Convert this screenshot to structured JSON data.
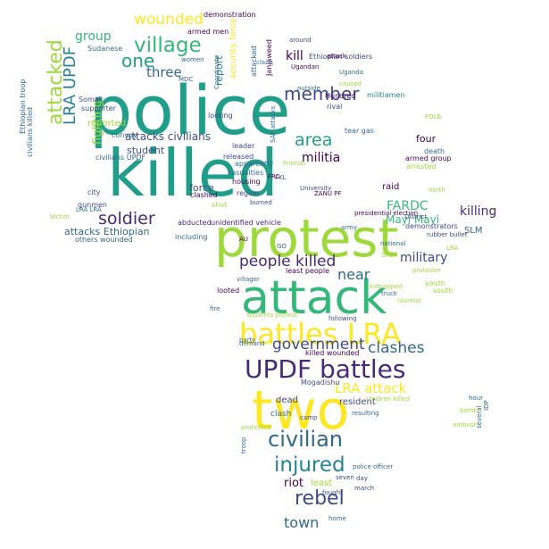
{
  "word_cloud": {
    "colors": {
      "teal": "#1f9e89",
      "green": "#35b779",
      "lime": "#9ed93a",
      "yellow": "#fde725",
      "blue": "#31688e",
      "indigo": "#3e4a89",
      "purple": "#482878",
      "dark": "#440154",
      "mid": "#26828e"
    },
    "words": [
      {
        "text": "police",
        "color": "teal"
      },
      {
        "text": "killed",
        "color": "teal"
      },
      {
        "text": "protest",
        "color": "lime"
      },
      {
        "text": "attack",
        "color": "green"
      },
      {
        "text": "two",
        "color": "yellow"
      },
      {
        "text": "battles LRA",
        "color": "yellow"
      },
      {
        "text": "UPDF battles",
        "color": "purple"
      },
      {
        "text": "civilian",
        "color": "blue"
      },
      {
        "text": "injured",
        "color": "mid"
      },
      {
        "text": "village",
        "color": "green"
      },
      {
        "text": "attacked",
        "color": "lime"
      },
      {
        "text": "LRA UPDF",
        "color": "mid"
      },
      {
        "text": "member",
        "color": "indigo"
      },
      {
        "text": "people killed",
        "color": "purple"
      },
      {
        "text": "area",
        "color": "teal"
      },
      {
        "text": "rebel",
        "color": "indigo"
      },
      {
        "text": "soldier",
        "color": "purple"
      },
      {
        "text": "government",
        "color": "indigo"
      },
      {
        "text": "clashes",
        "color": "blue"
      },
      {
        "text": "wounded",
        "color": "yellow"
      },
      {
        "text": "one",
        "color": "teal"
      },
      {
        "text": "LRA attack",
        "color": "yellow"
      },
      {
        "text": "militia",
        "color": "dark"
      },
      {
        "text": "kill",
        "color": "dark"
      },
      {
        "text": "killing",
        "color": "purple"
      },
      {
        "text": "military",
        "color": "indigo"
      },
      {
        "text": "town",
        "color": "blue"
      },
      {
        "text": "riot",
        "color": "dark"
      },
      {
        "text": "FARDC",
        "color": "green"
      },
      {
        "text": "near",
        "color": "blue"
      },
      {
        "text": "three",
        "color": "blue"
      },
      {
        "text": "group",
        "color": "green"
      },
      {
        "text": "fighting",
        "color": "lime"
      },
      {
        "text": "Mayi Mayi",
        "color": "green"
      },
      {
        "text": "attacks civilians",
        "color": "indigo"
      },
      {
        "text": "attacks Ethiopian",
        "color": "blue"
      },
      {
        "text": "force",
        "color": "indigo"
      },
      {
        "text": "report",
        "color": "mid"
      },
      {
        "text": "security force",
        "color": "yellow"
      },
      {
        "text": "SLM",
        "color": "blue"
      },
      {
        "text": "reported",
        "color": "lime"
      },
      {
        "text": "student",
        "color": "indigo"
      },
      {
        "text": "four",
        "color": "dark"
      },
      {
        "text": "raid",
        "color": "dark"
      },
      {
        "text": "resident",
        "color": "indigo"
      },
      {
        "text": "dead",
        "color": "indigo"
      },
      {
        "text": "clash",
        "color": "blue"
      },
      {
        "text": "convoy",
        "color": "blue"
      },
      {
        "text": "civilians UPDF",
        "color": "blue"
      },
      {
        "text": "supporter",
        "color": "indigo"
      },
      {
        "text": "Somali",
        "color": "indigo"
      },
      {
        "text": "Sudanese",
        "color": "blue"
      },
      {
        "text": "demonstration",
        "color": "dark"
      },
      {
        "text": "clashed",
        "color": "dark"
      },
      {
        "text": "looted",
        "color": "dark"
      },
      {
        "text": "including",
        "color": "blue"
      },
      {
        "text": "abducted",
        "color": "purple"
      },
      {
        "text": "unidentified vehicle",
        "color": "purple"
      },
      {
        "text": "others wounded",
        "color": "blue"
      },
      {
        "text": "Ethiopian soldiers",
        "color": "indigo"
      },
      {
        "text": "armed group",
        "color": "dark"
      },
      {
        "text": "demonstrators",
        "color": "indigo"
      },
      {
        "text": "presidential election",
        "color": "dark"
      },
      {
        "text": "militiamen",
        "color": "mid"
      },
      {
        "text": "District",
        "color": "indigo"
      },
      {
        "text": "Mogadishu",
        "color": "indigo"
      },
      {
        "text": "Hundred",
        "color": "dark"
      },
      {
        "text": "rival",
        "color": "indigo"
      },
      {
        "text": "tear gas",
        "color": "blue"
      },
      {
        "text": "arrested",
        "color": "lime"
      },
      {
        "text": "death",
        "color": "blue"
      },
      {
        "text": "shot",
        "color": "lime"
      },
      {
        "text": "youth",
        "color": "lime"
      },
      {
        "text": "south",
        "color": "lime"
      },
      {
        "text": "killed wounded",
        "color": "dark"
      },
      {
        "text": "least",
        "color": "lime"
      },
      {
        "text": "least people",
        "color": "dark"
      },
      {
        "text": "looting",
        "color": "indigo"
      },
      {
        "text": "leader",
        "color": "indigo"
      },
      {
        "text": "released",
        "color": "indigo"
      },
      {
        "text": "casualties",
        "color": "blue"
      },
      {
        "text": "apparently",
        "color": "blue"
      },
      {
        "text": "housing",
        "color": "dark"
      },
      {
        "text": "region",
        "color": "indigo"
      },
      {
        "text": "gunmen",
        "color": "indigo"
      },
      {
        "text": "city",
        "color": "indigo"
      },
      {
        "text": "civilians killed",
        "color": "blue"
      },
      {
        "text": "Ethiopian troop",
        "color": "blue"
      },
      {
        "text": "armed men",
        "color": "dark"
      },
      {
        "text": "women",
        "color": "blue"
      },
      {
        "text": "MDC",
        "color": "blue"
      },
      {
        "text": "Ugandan",
        "color": "dark"
      },
      {
        "text": "Janjaweed",
        "color": "dark"
      },
      {
        "text": "attacked",
        "color": "blue"
      },
      {
        "text": "FOLB",
        "color": "lime"
      },
      {
        "text": "Coordinate",
        "color": "blue"
      },
      {
        "text": "FRC",
        "color": "dark"
      },
      {
        "text": "SAF attacks",
        "color": "blue"
      },
      {
        "text": "Friends",
        "color": "lime"
      },
      {
        "text": "FKL",
        "color": "indigo"
      },
      {
        "text": "University",
        "color": "indigo"
      },
      {
        "text": "following",
        "color": "indigo"
      },
      {
        "text": "students protest",
        "color": "lime"
      },
      {
        "text": "party",
        "color": "blue"
      },
      {
        "text": "villager",
        "color": "blue"
      },
      {
        "text": "national",
        "color": "blue"
      },
      {
        "text": "army",
        "color": "blue"
      },
      {
        "text": "camp",
        "color": "indigo"
      },
      {
        "text": "resulting",
        "color": "blue"
      },
      {
        "text": "march",
        "color": "indigo"
      },
      {
        "text": "seven",
        "color": "indigo"
      },
      {
        "text": "fought",
        "color": "indigo"
      },
      {
        "text": "day",
        "color": "indigo"
      },
      {
        "text": "home",
        "color": "blue"
      },
      {
        "text": "troop",
        "color": "blue"
      },
      {
        "text": "bomb",
        "color": "lime"
      },
      {
        "text": "hour",
        "color": "blue"
      },
      {
        "text": "ambush",
        "color": "lime"
      },
      {
        "text": "several",
        "color": "blue"
      },
      {
        "text": "IDP",
        "color": "blue"
      },
      {
        "text": "demand",
        "color": "blue"
      },
      {
        "text": "protested",
        "color": "lime"
      },
      {
        "text": "children killed",
        "color": "lime"
      },
      {
        "text": "rubber bullet",
        "color": "indigo"
      },
      {
        "text": "LRA LRA",
        "color": "blue"
      },
      {
        "text": "Victim",
        "color": "lime"
      },
      {
        "text": "LRA",
        "color": "lime"
      },
      {
        "text": "Islamist",
        "color": "lime"
      },
      {
        "text": "truck",
        "color": "blue"
      },
      {
        "text": "ZANU PF",
        "color": "dark"
      },
      {
        "text": "around",
        "color": "indigo"
      },
      {
        "text": "attack",
        "color": "dark"
      },
      {
        "text": "Uganda",
        "color": "blue"
      },
      {
        "text": "caused",
        "color": "lime"
      },
      {
        "text": "GO",
        "color": "blue"
      },
      {
        "text": "AU",
        "color": "dark"
      },
      {
        "text": "outside",
        "color": "blue"
      },
      {
        "text": "claim",
        "color": "blue"
      },
      {
        "text": "SPLA",
        "color": "lime"
      },
      {
        "text": "protester",
        "color": "lime"
      },
      {
        "text": "kidnapped",
        "color": "lime"
      },
      {
        "text": "fire",
        "color": "blue"
      },
      {
        "text": "burned",
        "color": "indigo"
      },
      {
        "text": "north",
        "color": "lime"
      },
      {
        "text": "police officer",
        "color": "blue"
      }
    ]
  }
}
